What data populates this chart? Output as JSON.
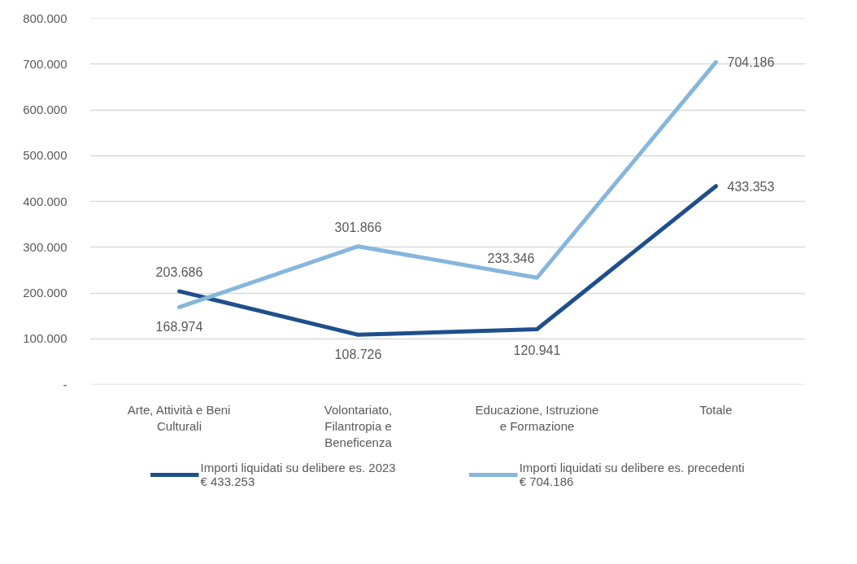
{
  "chart_data": {
    "type": "line",
    "categories": [
      "Arte, Attività e Beni Culturali",
      "Volontariato, Filantropia e Beneficenza",
      "Educazione, Istruzione e Formazione",
      "Totale"
    ],
    "series": [
      {
        "name": "Importi liquidati su delibere es. 2023\n€ 433.253",
        "color": "#1f4f8b",
        "values": [
          203686,
          108726,
          120941,
          433353
        ],
        "value_labels": [
          "203.686",
          "108.726",
          "120.941",
          "433.353"
        ]
      },
      {
        "name": "Importi liquidati su delibere es. precedenti\n€ 704.186",
        "color": "#86b6dc",
        "values": [
          168974,
          301866,
          233346,
          704186
        ],
        "value_labels": [
          "168.974",
          "301.866",
          "233.346",
          "704.186"
        ]
      }
    ],
    "ylim": [
      0,
      800000
    ],
    "yticks": [
      {
        "value": 0,
        "label": "-"
      },
      {
        "value": 100000,
        "label": "100.000"
      },
      {
        "value": 200000,
        "label": "200.000"
      },
      {
        "value": 300000,
        "label": "300.000"
      },
      {
        "value": 400000,
        "label": "400.000"
      },
      {
        "value": 500000,
        "label": "500.000"
      },
      {
        "value": 600000,
        "label": "600.000"
      },
      {
        "value": 700000,
        "label": "700.000"
      },
      {
        "value": 800000,
        "label": "800.000"
      }
    ],
    "grid": "y",
    "legend": "bottom",
    "marker": "none",
    "line_style": "solid"
  }
}
